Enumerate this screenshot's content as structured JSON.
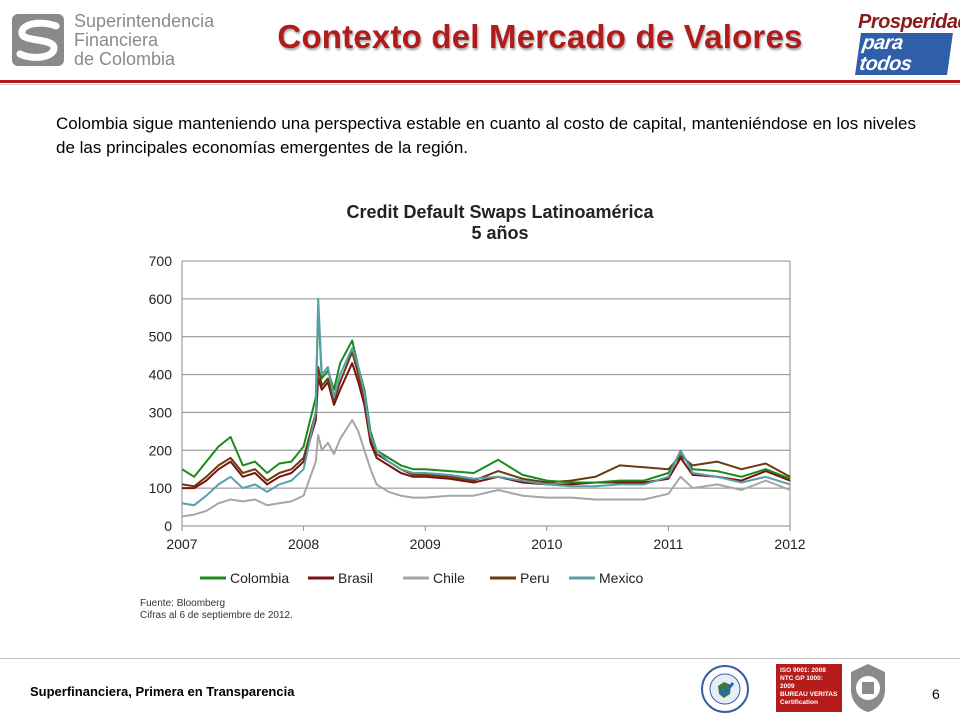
{
  "header": {
    "org_line1": "Superintendencia",
    "org_line2": "Financiera",
    "org_line3": "de Colombia",
    "title": "Contexto del Mercado de Valores",
    "brand_line1": "Prosperidad",
    "brand_line2": "para todos"
  },
  "intro": "Colombia sigue manteniendo una perspectiva estable en cuanto al costo de capital, manteniéndose en los niveles de las principales economías emergentes de la región.",
  "source": {
    "line1": "Fuente: Bloomberg",
    "line2": "Cifras al  6 de septiembre de 2012."
  },
  "footer": {
    "tagline": "Superfinanciera, Primera en Transparencia",
    "page": "6",
    "cert_lines": [
      "ISO 9001: 2008",
      "NTC GP 1000: 2009",
      "BUREAU VERITAS",
      "Certification"
    ]
  },
  "chart_data": {
    "type": "line",
    "title": "Credit Default Swaps Latinoamérica",
    "subtitle": "5 años",
    "xlabel": "",
    "ylabel": "",
    "x_ticks": [
      "2007",
      "2008",
      "2009",
      "2010",
      "2011",
      "2012"
    ],
    "xlim": [
      2007,
      2012
    ],
    "y_ticks": [
      "0",
      "100",
      "200",
      "300",
      "400",
      "500",
      "600",
      "700"
    ],
    "ylim": [
      0,
      700
    ],
    "grid": "horizontal",
    "legend": "bottom",
    "x": [
      2007.0,
      2007.1,
      2007.2,
      2007.3,
      2007.4,
      2007.5,
      2007.6,
      2007.7,
      2007.8,
      2007.9,
      2008.0,
      2008.1,
      2008.12,
      2008.15,
      2008.2,
      2008.25,
      2008.3,
      2008.4,
      2008.45,
      2008.5,
      2008.55,
      2008.6,
      2008.7,
      2008.8,
      2008.9,
      2009.0,
      2009.2,
      2009.4,
      2009.6,
      2009.8,
      2010.0,
      2010.2,
      2010.4,
      2010.6,
      2010.8,
      2011.0,
      2011.1,
      2011.2,
      2011.4,
      2011.6,
      2011.8,
      2012.0
    ],
    "series": [
      {
        "name": "Colombia",
        "color": "#1a8a1a",
        "values": [
          150,
          130,
          170,
          210,
          235,
          160,
          170,
          140,
          165,
          170,
          210,
          340,
          580,
          390,
          410,
          360,
          430,
          490,
          420,
          360,
          250,
          200,
          180,
          160,
          150,
          150,
          145,
          140,
          175,
          135,
          120,
          115,
          115,
          120,
          120,
          140,
          195,
          150,
          145,
          130,
          150,
          125
        ]
      },
      {
        "name": "Brasil",
        "color": "#7b1010",
        "values": [
          100,
          100,
          120,
          150,
          170,
          130,
          140,
          110,
          130,
          140,
          170,
          280,
          390,
          360,
          380,
          320,
          360,
          430,
          380,
          320,
          220,
          180,
          160,
          140,
          130,
          130,
          125,
          115,
          130,
          115,
          110,
          110,
          115,
          115,
          115,
          125,
          180,
          135,
          130,
          120,
          145,
          120
        ]
      },
      {
        "name": "Chile",
        "color": "#a6a6a6",
        "values": [
          25,
          30,
          40,
          60,
          70,
          65,
          70,
          55,
          60,
          65,
          80,
          170,
          240,
          200,
          220,
          190,
          230,
          280,
          250,
          200,
          150,
          110,
          90,
          80,
          75,
          75,
          80,
          80,
          95,
          80,
          75,
          75,
          70,
          70,
          70,
          85,
          130,
          100,
          110,
          95,
          120,
          95
        ]
      },
      {
        "name": "Peru",
        "color": "#6b3a0f",
        "values": [
          110,
          105,
          130,
          160,
          180,
          140,
          150,
          120,
          140,
          150,
          180,
          300,
          420,
          370,
          390,
          330,
          380,
          460,
          400,
          340,
          230,
          190,
          170,
          150,
          135,
          135,
          130,
          120,
          145,
          125,
          115,
          120,
          130,
          160,
          155,
          150,
          185,
          160,
          170,
          150,
          165,
          130
        ]
      },
      {
        "name": "Mexico",
        "color": "#5a9eaa",
        "values": [
          60,
          55,
          80,
          110,
          130,
          100,
          110,
          90,
          110,
          120,
          150,
          300,
          600,
          400,
          420,
          340,
          400,
          470,
          420,
          350,
          240,
          200,
          170,
          150,
          140,
          140,
          135,
          125,
          130,
          120,
          110,
          105,
          105,
          110,
          110,
          130,
          200,
          140,
          130,
          115,
          130,
          110
        ]
      }
    ]
  }
}
